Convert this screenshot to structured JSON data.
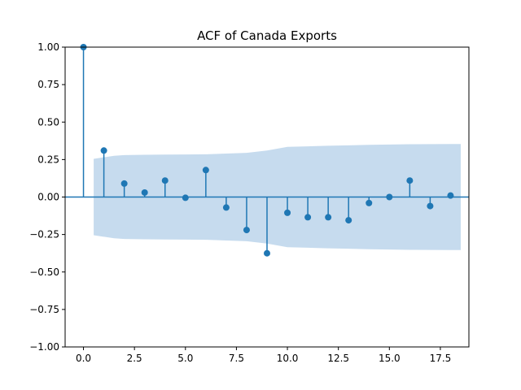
{
  "chart_data": {
    "type": "scatter",
    "subtype": "stem",
    "title": "ACF of Canada Exports",
    "xlabel": "",
    "ylabel": "",
    "xlim": [
      -0.9,
      18.9
    ],
    "ylim": [
      -1.0,
      1.0
    ],
    "x_ticks": [
      0.0,
      2.5,
      5.0,
      7.5,
      10.0,
      12.5,
      15.0,
      17.5
    ],
    "x_tick_labels": [
      "0.0",
      "2.5",
      "5.0",
      "7.5",
      "10.0",
      "12.5",
      "15.0",
      "17.5"
    ],
    "y_ticks": [
      1.0,
      0.75,
      0.5,
      0.25,
      0.0,
      -0.25,
      -0.5,
      -0.75,
      -1.0
    ],
    "y_tick_labels": [
      "1.00",
      "0.75",
      "0.50",
      "0.25",
      "0.00",
      "−0.25",
      "−0.50",
      "−0.75",
      "−1.00"
    ],
    "grid": false,
    "legend": "none",
    "series": [
      {
        "x": [
          0,
          1,
          2,
          3,
          4,
          5,
          6,
          7,
          8,
          9,
          10,
          11,
          12,
          13,
          14,
          15,
          16,
          17,
          18
        ],
        "values": [
          1.0,
          0.31,
          0.09,
          0.03,
          0.11,
          -0.005,
          0.18,
          -0.07,
          -0.22,
          -0.375,
          -0.105,
          -0.135,
          -0.135,
          -0.155,
          -0.04,
          0.0,
          0.11,
          -0.06,
          0.01
        ]
      }
    ],
    "confidence_band": {
      "x": [
        0.5,
        1.5,
        2,
        3,
        4,
        5,
        6,
        7,
        8,
        9,
        10,
        11,
        12,
        13,
        14,
        15,
        16,
        17,
        18,
        18.5
      ],
      "upper": [
        0.255,
        0.275,
        0.28,
        0.282,
        0.283,
        0.284,
        0.285,
        0.29,
        0.295,
        0.31,
        0.335,
        0.338,
        0.342,
        0.345,
        0.348,
        0.35,
        0.352,
        0.353,
        0.354,
        0.354
      ]
    },
    "colors": {
      "stem": "#1f77b4",
      "band": "#c6dbee",
      "axes": "#000000"
    }
  }
}
